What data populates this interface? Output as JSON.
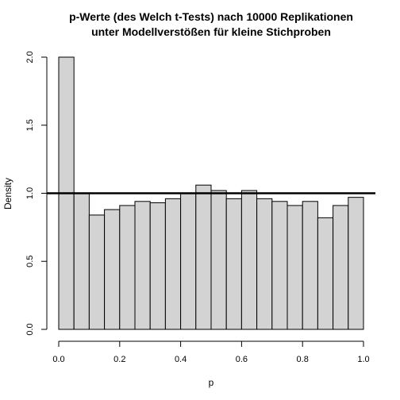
{
  "chart_data": {
    "type": "bar",
    "subtype": "histogram",
    "title_lines": [
      "p-Werte (des Welch t-Tests) nach 10000 Replikationen",
      "unter Modellverstößen für kleine Stichproben"
    ],
    "xlabel": "p",
    "ylabel": "Density",
    "xlim": [
      0,
      1
    ],
    "ylim": [
      0,
      2
    ],
    "x_ticks": [
      0,
      0.2,
      0.4,
      0.6,
      0.8,
      1
    ],
    "x_tick_labels": [
      "0.0",
      "0.2",
      "0.4",
      "0.6",
      "0.8",
      "1.0"
    ],
    "y_ticks": [
      0,
      0.5,
      1,
      1.5,
      2
    ],
    "y_tick_labels": [
      "0.0",
      "0.5",
      "1.0",
      "1.5",
      "2.0"
    ],
    "bin_edges": [
      0,
      0.05,
      0.1,
      0.15,
      0.2,
      0.25,
      0.3,
      0.35,
      0.4,
      0.45,
      0.5,
      0.55,
      0.6,
      0.65,
      0.7,
      0.75,
      0.8,
      0.85,
      0.9,
      0.95,
      1
    ],
    "values": [
      2.0,
      1.0,
      0.84,
      0.88,
      0.91,
      0.94,
      0.93,
      0.96,
      1.0,
      1.06,
      1.02,
      0.96,
      1.02,
      0.96,
      0.94,
      0.91,
      0.94,
      0.82,
      0.91,
      0.97
    ],
    "reference_line": 1.0,
    "bar_fill": "#d3d3d3",
    "bar_stroke": "#000000",
    "line_color": "#000000",
    "grid": false
  }
}
